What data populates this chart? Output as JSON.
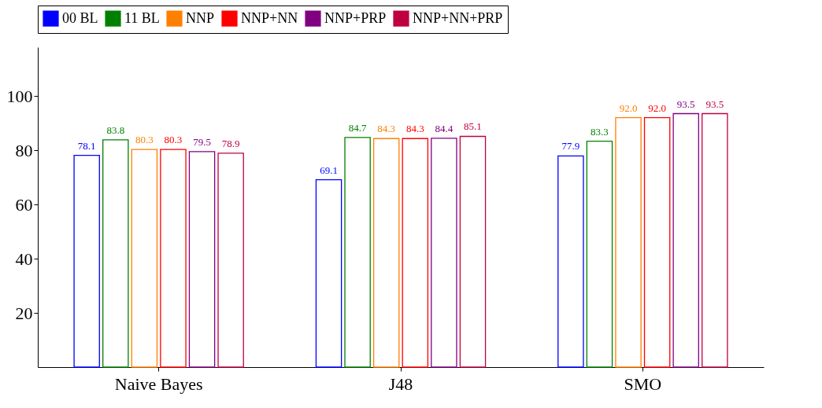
{
  "chart_data": {
    "type": "bar",
    "categories": [
      "Naive Bayes",
      "J48",
      "SMO"
    ],
    "series": [
      {
        "name": "00 BL",
        "color": "#0000ff",
        "values": [
          78.1,
          69.1,
          77.9
        ],
        "value_labels": [
          "78.1",
          "69.1",
          "77.9"
        ]
      },
      {
        "name": "11 BL",
        "color": "#008000",
        "values": [
          83.8,
          84.7,
          83.3
        ],
        "value_labels": [
          "83.8",
          "84.7",
          "83.3"
        ]
      },
      {
        "name": "NNP",
        "color": "#ff8000",
        "values": [
          80.3,
          84.3,
          92.0
        ],
        "value_labels": [
          "80.3",
          "84.3",
          "92.0"
        ]
      },
      {
        "name": "NNP+NN",
        "color": "#ff0000",
        "values": [
          80.3,
          84.3,
          92.0
        ],
        "value_labels": [
          "80.3",
          "84.3",
          "92.0"
        ]
      },
      {
        "name": "NNP+PRP",
        "color": "#800080",
        "values": [
          79.5,
          84.4,
          93.5
        ],
        "value_labels": [
          "79.5",
          "84.4",
          "93.5"
        ]
      },
      {
        "name": "NNP+NN+PRP",
        "color": "#bf0040",
        "values": [
          78.9,
          85.1,
          93.5
        ],
        "value_labels": [
          "78.9",
          "85.1",
          "93.5"
        ]
      }
    ],
    "ylim": [
      0,
      118
    ],
    "yticks": [
      20,
      40,
      60,
      80,
      100
    ],
    "grid": false,
    "legend": "top"
  }
}
